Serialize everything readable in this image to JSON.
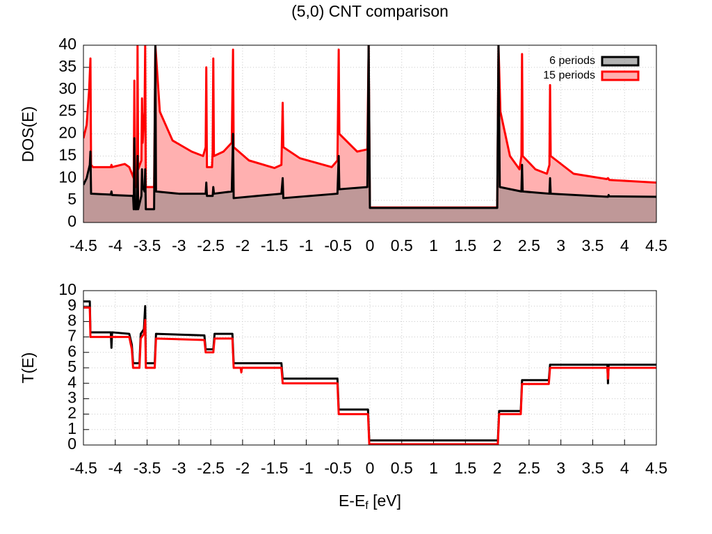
{
  "chart_data": [
    {
      "type": "area",
      "title": "(5,0) CNT comparison",
      "ylabel": "DOS(E)",
      "xlim": [
        -4.5,
        4.5
      ],
      "xticks": [
        -4.5,
        -4,
        -3.5,
        -3,
        -2.5,
        -2,
        -1.5,
        -1,
        -0.5,
        0,
        0.5,
        1,
        1.5,
        2,
        2.5,
        3,
        3.5,
        4,
        4.5
      ],
      "ylim": [
        0,
        40
      ],
      "yticks": [
        0,
        5,
        10,
        15,
        20,
        25,
        30,
        35,
        40
      ],
      "grid": true,
      "legend": "top-right",
      "series": [
        {
          "name": "15 periods",
          "color": "#ff0000",
          "fill": "#ffb0b0",
          "x": [
            -4.5,
            -4.45,
            -4.41,
            -4.39,
            -4.38,
            -4.35,
            -4.07,
            -4.06,
            -4.05,
            -3.85,
            -3.78,
            -3.71,
            -3.7,
            -3.69,
            -3.66,
            -3.65,
            -3.64,
            -3.59,
            -3.58,
            -3.57,
            -3.54,
            -3.53,
            -3.52,
            -3.39,
            -3.37,
            -3.3,
            -3.1,
            -2.8,
            -2.62,
            -2.58,
            -2.57,
            -2.56,
            -2.48,
            -2.47,
            -2.46,
            -2.45,
            -2.3,
            -2.17,
            -2.15,
            -2.14,
            -1.9,
            -1.5,
            -1.39,
            -1.37,
            -1.36,
            -1.1,
            -0.6,
            -0.51,
            -0.49,
            -0.48,
            -0.2,
            -0.04,
            -0.02,
            0.0,
            2.0,
            2.02,
            2.05,
            2.2,
            2.35,
            2.38,
            2.39,
            2.4,
            2.6,
            2.78,
            2.82,
            2.83,
            2.84,
            3.2,
            3.72,
            3.74,
            3.76,
            4.5
          ],
          "values": [
            19,
            22,
            30,
            37,
            13,
            12.5,
            12.5,
            13,
            12.5,
            13.2,
            12.5,
            10,
            32,
            8,
            8,
            40,
            12,
            14,
            28,
            18,
            25,
            40,
            8,
            8,
            40,
            25,
            18.5,
            16,
            15,
            17,
            35,
            12.5,
            12.5,
            16,
            37,
            15,
            16,
            18,
            39,
            17,
            14,
            12.3,
            13,
            27,
            17,
            14.5,
            12.5,
            14,
            39,
            20,
            16,
            16.5,
            40,
            3.4,
            3.4,
            40,
            25,
            15,
            12,
            15,
            38,
            15,
            12,
            11,
            13,
            31,
            15,
            11,
            9.8,
            10,
            9.6,
            9
          ]
        },
        {
          "name": "6 periods",
          "color": "#000000",
          "fill": "#808080",
          "x": [
            -4.5,
            -4.45,
            -4.4,
            -4.39,
            -4.38,
            -4.07,
            -4.06,
            -4.05,
            -3.72,
            -3.71,
            -3.7,
            -3.69,
            -3.66,
            -3.65,
            -3.64,
            -3.59,
            -3.58,
            -3.57,
            -3.54,
            -3.53,
            -3.52,
            -3.39,
            -3.37,
            -3.36,
            -3.0,
            -2.58,
            -2.57,
            -2.56,
            -2.47,
            -2.46,
            -2.45,
            -2.17,
            -2.15,
            -2.14,
            -1.39,
            -1.37,
            -1.36,
            -0.51,
            -0.49,
            -0.48,
            -0.04,
            -0.02,
            0.0,
            2.0,
            2.02,
            2.04,
            2.38,
            2.39,
            2.4,
            2.82,
            2.83,
            2.84,
            3.74,
            3.75,
            3.76,
            4.5
          ],
          "values": [
            8.5,
            10,
            13,
            16,
            6.5,
            6.3,
            7,
            6.2,
            6,
            3,
            19,
            3,
            3,
            15,
            3,
            6,
            12,
            8,
            7,
            12,
            3,
            3,
            40,
            7,
            6.5,
            6.5,
            9,
            6,
            6,
            8,
            6.5,
            7,
            20,
            5.5,
            6.5,
            10,
            5.5,
            6.5,
            15,
            7.5,
            8,
            40,
            3.3,
            3.3,
            40,
            8,
            7,
            13,
            7,
            6.5,
            10,
            6.5,
            5.8,
            6.2,
            5.9,
            5.8
          ]
        }
      ]
    },
    {
      "type": "line",
      "ylabel": "T(E)",
      "xlabel": "E-E",
      "xlabel_sub": "f",
      "xlabel_unit": " [eV]",
      "xlim": [
        -4.5,
        4.5
      ],
      "xticks": [
        -4.5,
        -4,
        -3.5,
        -3,
        -2.5,
        -2,
        -1.5,
        -1,
        -0.5,
        0,
        0.5,
        1,
        1.5,
        2,
        2.5,
        3,
        3.5,
        4,
        4.5
      ],
      "ylim": [
        0,
        10
      ],
      "yticks": [
        0,
        1,
        2,
        3,
        4,
        5,
        6,
        7,
        8,
        9,
        10
      ],
      "grid": true,
      "series": [
        {
          "color": "#000000",
          "x": [
            -4.5,
            -4.4,
            -4.39,
            -4.07,
            -4.06,
            -4.05,
            -3.78,
            -3.74,
            -3.72,
            -3.62,
            -3.6,
            -3.55,
            -3.53,
            -3.52,
            -3.38,
            -3.36,
            -2.6,
            -2.58,
            -2.46,
            -2.44,
            -2.16,
            -2.14,
            -1.39,
            -1.37,
            -0.51,
            -0.49,
            -0.03,
            -0.01,
            2.01,
            2.03,
            2.37,
            2.39,
            2.81,
            2.83,
            3.73,
            3.74,
            3.75,
            4.5
          ],
          "values": [
            9.3,
            9.3,
            7.3,
            7.3,
            6.3,
            7.3,
            7.2,
            6.5,
            5.3,
            5.3,
            7.2,
            7.5,
            9,
            5.3,
            5.3,
            7.2,
            7.1,
            6.2,
            6.2,
            7.2,
            7.2,
            5.3,
            5.3,
            4.3,
            4.3,
            2.3,
            2.3,
            0.3,
            0.3,
            2.2,
            2.2,
            4.2,
            4.2,
            5.2,
            5.2,
            4,
            5.2,
            5.2
          ]
        },
        {
          "color": "#ff0000",
          "x": [
            -4.5,
            -4.4,
            -4.39,
            -3.78,
            -3.74,
            -3.72,
            -3.62,
            -3.6,
            -3.55,
            -3.53,
            -3.52,
            -3.38,
            -3.36,
            -2.6,
            -2.58,
            -2.46,
            -2.44,
            -2.16,
            -2.14,
            -2.03,
            -2.02,
            -2.01,
            -1.39,
            -1.37,
            -0.51,
            -0.49,
            -0.03,
            -0.01,
            2.01,
            2.03,
            2.37,
            2.39,
            2.81,
            2.83,
            3.73,
            3.74,
            3.75,
            4.5
          ],
          "values": [
            8.9,
            8.9,
            7.0,
            7.0,
            6.2,
            5.0,
            5.0,
            6.9,
            7.2,
            8.1,
            5.0,
            5.0,
            6.9,
            6.8,
            6.0,
            6.0,
            6.9,
            6.9,
            5.0,
            5.0,
            4.7,
            5.0,
            5.0,
            4.0,
            4.0,
            2.0,
            2.0,
            0.05,
            0.05,
            2.0,
            2.0,
            3.95,
            3.95,
            5.0,
            5.0,
            4.3,
            5.0,
            5.0
          ]
        }
      ]
    }
  ]
}
